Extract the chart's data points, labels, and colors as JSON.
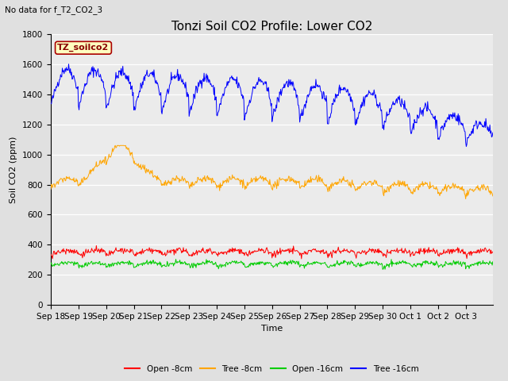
{
  "title": "Tonzi Soil CO2 Profile: Lower CO2",
  "subtitle": "No data for f_T2_CO2_3",
  "ylabel": "Soil CO2 (ppm)",
  "xlabel": "Time",
  "legend_label": "TZ_soilco2",
  "series_labels": [
    "Open -8cm",
    "Tree -8cm",
    "Open -16cm",
    "Tree -16cm"
  ],
  "series_colors": [
    "#ff0000",
    "#ffa500",
    "#00cc00",
    "#0000ff"
  ],
  "ylim": [
    0,
    1800
  ],
  "yticks": [
    0,
    200,
    400,
    600,
    800,
    1000,
    1200,
    1400,
    1600,
    1800
  ],
  "background_color": "#e0e0e0",
  "plot_bg_color": "#ebebeb",
  "grid_color": "#ffffff",
  "xtick_labels": [
    "Sep 18",
    "Sep 19",
    "Sep 20",
    "Sep 21",
    "Sep 22",
    "Sep 23",
    "Sep 24",
    "Sep 25",
    "Sep 26",
    "Sep 27",
    "Sep 28",
    "Sep 29",
    "Sep 30",
    "Oct 1",
    "Oct 2",
    "Oct 3"
  ],
  "title_fontsize": 11,
  "axis_fontsize": 8,
  "tick_fontsize": 7.5,
  "legend_box_color": "#ffffc0",
  "legend_box_edge": "#aa0000",
  "legend_text_color": "#880000"
}
